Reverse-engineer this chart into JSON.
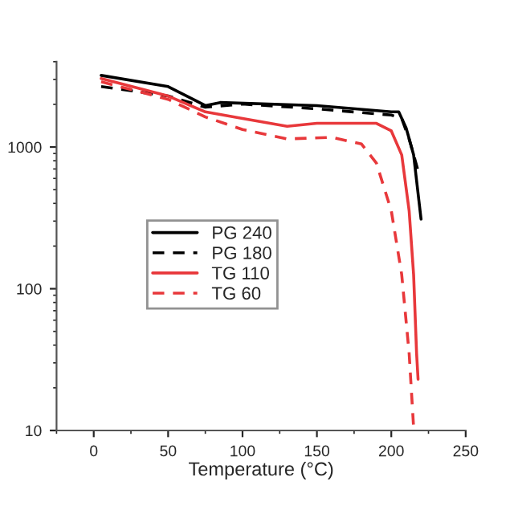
{
  "chart_data": {
    "type": "line",
    "xlabel": "Temperature (°C)",
    "log": "y",
    "xlim": [
      -25,
      250
    ],
    "xticks": [
      0,
      50,
      100,
      150,
      200,
      250
    ],
    "ylim": [
      10,
      4000
    ],
    "yticks": [
      10,
      100,
      1000
    ],
    "grid": false,
    "legend": "left",
    "marker": "none",
    "series": [
      {
        "name": "PG 240",
        "color": "#000000",
        "line_style": "solid",
        "x": [
          5,
          50,
          75,
          85,
          150,
          200,
          205,
          210,
          215,
          220
        ],
        "values": [
          3200,
          2670,
          1960,
          2060,
          1960,
          1770,
          1770,
          1360,
          880,
          310
        ]
      },
      {
        "name": "PG 180",
        "color": "#000000",
        "line_style": "dashed",
        "x": [
          5,
          50,
          75,
          100,
          150,
          200,
          207,
          212,
          218
        ],
        "values": [
          2670,
          2290,
          1910,
          2010,
          1860,
          1680,
          1590,
          1140,
          680
        ]
      },
      {
        "name": "TG 110",
        "color": "#e8383b",
        "line_style": "solid",
        "x": [
          5,
          50,
          75,
          100,
          130,
          150,
          190,
          200,
          207,
          212,
          215,
          217,
          218
        ],
        "values": [
          3040,
          2290,
          1770,
          1590,
          1400,
          1470,
          1470,
          1300,
          880,
          355,
          126,
          35,
          23
        ]
      },
      {
        "name": "TG 60",
        "color": "#e8383b",
        "line_style": "dashed",
        "x": [
          5,
          50,
          75,
          100,
          130,
          160,
          180,
          190,
          200,
          207,
          212,
          215
        ],
        "values": [
          2890,
          2170,
          1630,
          1330,
          1140,
          1170,
          1050,
          770,
          355,
          126,
          35,
          10.5
        ]
      }
    ]
  }
}
